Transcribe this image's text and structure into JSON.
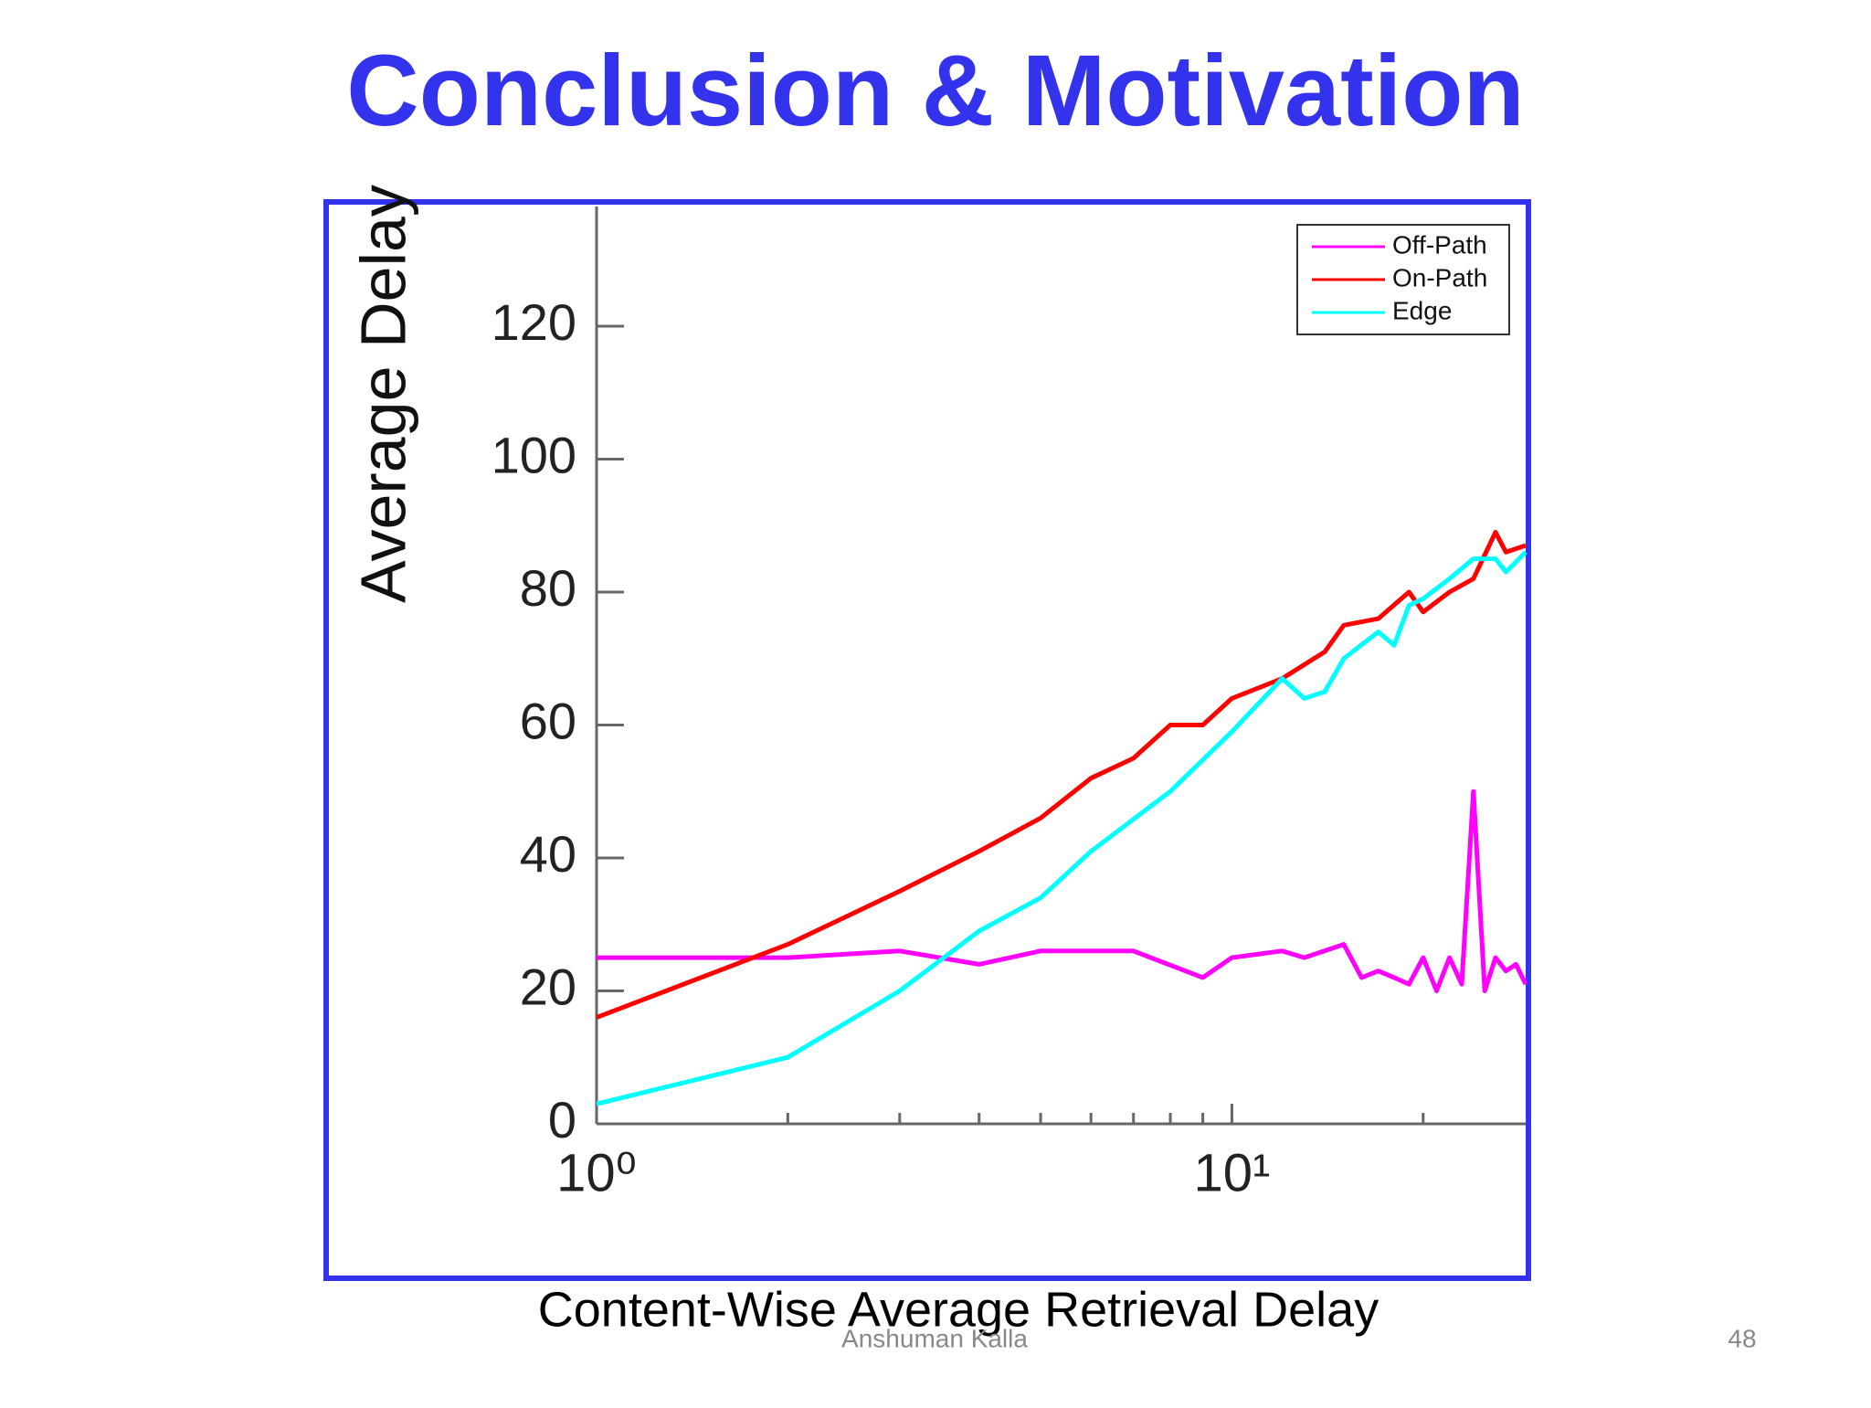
{
  "slide": {
    "title": "Conclusion & Motivation",
    "caption": "Content-Wise Average Retrieval Delay",
    "footer": "Anshuman Kalla",
    "page_number": "48"
  },
  "chart_data": {
    "type": "line",
    "ylabel": "Average Delay",
    "xscale": "log",
    "grid": false,
    "legend": "upper right",
    "xlim": [
      1,
      29
    ],
    "ylim": [
      0,
      138
    ],
    "xticks": [
      {
        "value": 1,
        "label": "10⁰"
      },
      {
        "value": 10,
        "label": "10¹"
      }
    ],
    "minor_xticks": [
      2,
      3,
      4,
      5,
      6,
      7,
      8,
      9,
      20
    ],
    "yticks": [
      0,
      20,
      40,
      60,
      80,
      100,
      120
    ],
    "series": [
      {
        "name": "Off-Path",
        "color": "#ff00ff",
        "x": [
          1,
          2,
          3,
          4,
          5,
          6,
          7,
          9,
          10,
          12,
          13,
          15,
          16,
          17,
          18,
          19,
          20,
          21,
          22,
          23,
          24,
          25,
          26,
          27,
          28,
          29
        ],
        "values": [
          25,
          25,
          26,
          24,
          26,
          26,
          26,
          22,
          25,
          26,
          25,
          27,
          22,
          23,
          22,
          21,
          25,
          20,
          25,
          21,
          50,
          20,
          25,
          23,
          24,
          21
        ]
      },
      {
        "name": "On-Path",
        "color": "#ff0000",
        "x": [
          1,
          2,
          3,
          4,
          5,
          6,
          7,
          8,
          9,
          10,
          12,
          14,
          15,
          17,
          19,
          20,
          22,
          24,
          26,
          27,
          29
        ],
        "values": [
          16,
          27,
          35,
          41,
          46,
          52,
          55,
          60,
          60,
          64,
          67,
          71,
          75,
          76,
          80,
          77,
          80,
          82,
          89,
          86,
          87
        ]
      },
      {
        "name": "Edge",
        "color": "#00ffff",
        "x": [
          1,
          2,
          3,
          4,
          5,
          6,
          8,
          10,
          12,
          13,
          14,
          15,
          17,
          18,
          19,
          20,
          22,
          24,
          26,
          27,
          29
        ],
        "values": [
          3,
          10,
          20,
          29,
          34,
          41,
          50,
          59,
          67,
          64,
          65,
          70,
          74,
          72,
          78,
          79,
          82,
          85,
          85,
          83,
          86
        ]
      }
    ]
  }
}
